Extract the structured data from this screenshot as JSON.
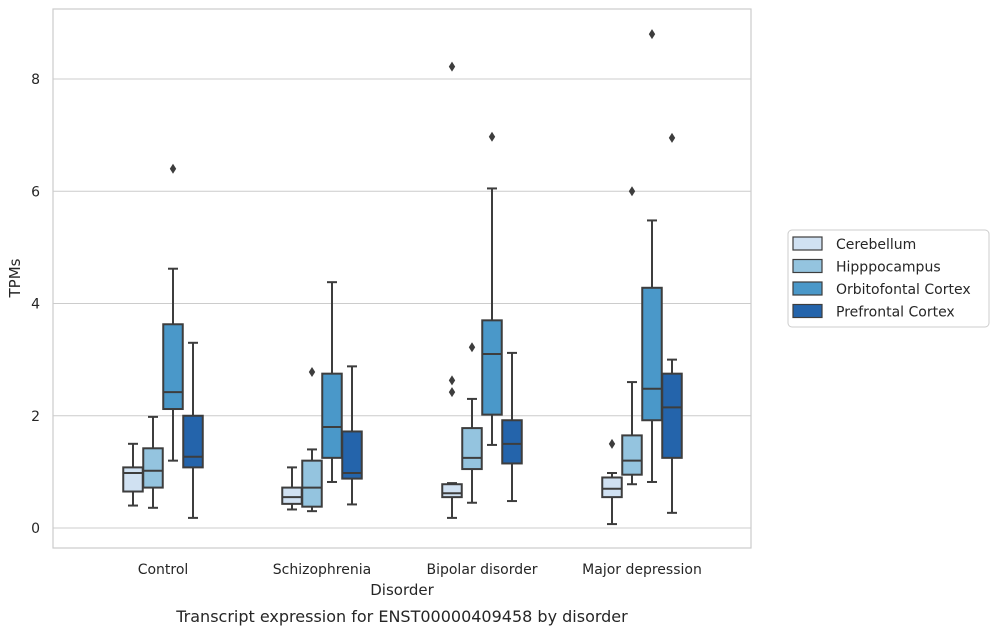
{
  "caption": "Transcript expression for ENST00000409458 by disorder",
  "chart_data": {
    "type": "boxplot",
    "xlabel": "Disorder",
    "ylabel": "TPMs",
    "ylim": [
      -0.35,
      9.3
    ],
    "yticks": [
      0,
      2,
      4,
      6,
      8
    ],
    "categories": [
      "Control",
      "Schizophrenia",
      "Bipolar disorder",
      "Major depression"
    ],
    "grid": "horizontal",
    "legend_position": "right",
    "series": [
      {
        "name": "Cerebellum",
        "color": "#d0e1f2",
        "boxes": [
          {
            "whislo": 0.4,
            "q1": 0.65,
            "med": 0.98,
            "q3": 1.08,
            "whishi": 1.5,
            "fliers": []
          },
          {
            "whislo": 0.33,
            "q1": 0.43,
            "med": 0.55,
            "q3": 0.72,
            "whishi": 1.08,
            "fliers": []
          },
          {
            "whislo": 0.18,
            "q1": 0.55,
            "med": 0.62,
            "q3": 0.78,
            "whishi": 0.8,
            "fliers": [
              2.42,
              2.63,
              8.22
            ]
          },
          {
            "whislo": 0.07,
            "q1": 0.55,
            "med": 0.7,
            "q3": 0.9,
            "whishi": 0.98,
            "fliers": [
              1.5
            ]
          }
        ]
      },
      {
        "name": "Hipppocampus",
        "color": "#94c4df",
        "boxes": [
          {
            "whislo": 0.36,
            "q1": 0.72,
            "med": 1.02,
            "q3": 1.42,
            "whishi": 1.98,
            "fliers": []
          },
          {
            "whislo": 0.3,
            "q1": 0.38,
            "med": 0.72,
            "q3": 1.2,
            "whishi": 1.4,
            "fliers": [
              2.78
            ]
          },
          {
            "whislo": 0.45,
            "q1": 1.05,
            "med": 1.25,
            "q3": 1.78,
            "whishi": 2.3,
            "fliers": [
              3.22
            ]
          },
          {
            "whislo": 0.78,
            "q1": 0.95,
            "med": 1.2,
            "q3": 1.65,
            "whishi": 2.6,
            "fliers": [
              6.0
            ]
          }
        ]
      },
      {
        "name": "Orbitofontal Cortex",
        "color": "#4a98c9",
        "boxes": [
          {
            "whislo": 1.2,
            "q1": 2.12,
            "med": 2.42,
            "q3": 3.63,
            "whishi": 4.62,
            "fliers": [
              6.4
            ]
          },
          {
            "whislo": 0.82,
            "q1": 1.25,
            "med": 1.8,
            "q3": 2.75,
            "whishi": 4.38,
            "fliers": []
          },
          {
            "whislo": 1.48,
            "q1": 2.02,
            "med": 3.1,
            "q3": 3.7,
            "whishi": 6.05,
            "fliers": [
              6.97
            ]
          },
          {
            "whislo": 0.82,
            "q1": 1.92,
            "med": 2.48,
            "q3": 4.28,
            "whishi": 5.48,
            "fliers": [
              8.8
            ]
          }
        ]
      },
      {
        "name": "Prefrontal Cortex",
        "color": "#2464ab",
        "boxes": [
          {
            "whislo": 0.18,
            "q1": 1.08,
            "med": 1.27,
            "q3": 2.0,
            "whishi": 3.3,
            "fliers": []
          },
          {
            "whislo": 0.42,
            "q1": 0.88,
            "med": 0.98,
            "q3": 1.72,
            "whishi": 2.88,
            "fliers": []
          },
          {
            "whislo": 0.48,
            "q1": 1.15,
            "med": 1.5,
            "q3": 1.92,
            "whishi": 3.12,
            "fliers": []
          },
          {
            "whislo": 0.27,
            "q1": 1.25,
            "med": 2.15,
            "q3": 2.75,
            "whishi": 3.0,
            "fliers": [
              6.95
            ]
          }
        ]
      }
    ]
  }
}
